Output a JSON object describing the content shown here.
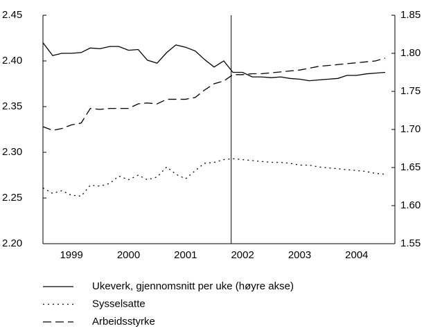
{
  "chart_data": {
    "type": "line",
    "x": [
      1999,
      1999.17,
      1999.33,
      1999.5,
      1999.67,
      1999.83,
      2000,
      2000.17,
      2000.33,
      2000.5,
      2000.67,
      2000.83,
      2001,
      2001.17,
      2001.33,
      2001.5,
      2001.67,
      2001.83,
      2002,
      2002.17,
      2002.33,
      2002.5,
      2002.67,
      2002.83,
      2003,
      2003.17,
      2003.33,
      2003.5,
      2003.67,
      2003.83,
      2004,
      2004.17,
      2004.33,
      2004.5,
      2004.67,
      2004.83,
      2005
    ],
    "xlim": [
      1999,
      2005.17
    ],
    "xticks": [
      {
        "value": 1999.5,
        "label": "1999"
      },
      {
        "value": 2000.5,
        "label": "2000"
      },
      {
        "value": 2001.5,
        "label": "2001"
      },
      {
        "value": 2002.5,
        "label": "2002"
      },
      {
        "value": 2003.5,
        "label": "2003"
      },
      {
        "value": 2004.5,
        "label": "2004"
      }
    ],
    "ylim": [
      2.2,
      2.45
    ],
    "yticks": [
      {
        "value": 2.2,
        "label": "2.20"
      },
      {
        "value": 2.25,
        "label": "2.25"
      },
      {
        "value": 2.3,
        "label": "2.30"
      },
      {
        "value": 2.35,
        "label": "2.35"
      },
      {
        "value": 2.4,
        "label": "2.40"
      },
      {
        "value": 2.45,
        "label": "2.45"
      }
    ],
    "y2lim": [
      1.55,
      1.85
    ],
    "y2ticks": [
      {
        "value": 1.55,
        "label": "1.55"
      },
      {
        "value": 1.6,
        "label": "1.60"
      },
      {
        "value": 1.65,
        "label": "1.65"
      },
      {
        "value": 1.7,
        "label": "1.70"
      },
      {
        "value": 1.75,
        "label": "1.75"
      },
      {
        "value": 1.8,
        "label": "1.80"
      },
      {
        "value": 1.85,
        "label": "1.85"
      }
    ],
    "vline_x": 2002.3,
    "series": [
      {
        "name": "Ukeverk, gjennomsnitt per uke (høyre akse)",
        "color": "#000000",
        "dash": "none",
        "axis": "y2",
        "values": [
          1.814,
          1.797,
          1.8,
          1.8,
          1.801,
          1.807,
          1.806,
          1.809,
          1.809,
          1.804,
          1.805,
          1.791,
          1.787,
          1.801,
          1.811,
          1.808,
          1.803,
          1.792,
          1.782,
          1.79,
          1.775,
          1.775,
          1.769,
          1.769,
          1.768,
          1.769,
          1.767,
          1.766,
          1.764,
          1.765,
          1.766,
          1.767,
          1.771,
          1.771,
          1.773,
          1.774,
          1.775
        ]
      },
      {
        "name": "Sysselsatte",
        "color": "#000000",
        "dash": "2 5",
        "values": [
          2.261,
          2.255,
          2.258,
          2.253,
          2.252,
          2.264,
          2.263,
          2.266,
          2.274,
          2.27,
          2.275,
          2.27,
          2.273,
          2.284,
          2.276,
          2.271,
          2.28,
          2.288,
          2.289,
          2.292,
          2.293,
          2.292,
          2.291,
          2.29,
          2.289,
          2.289,
          2.288,
          2.286,
          2.286,
          2.284,
          2.283,
          2.282,
          2.281,
          2.28,
          2.279,
          2.277,
          2.276
        ]
      },
      {
        "name": "Arbeidsstyrke",
        "color": "#000000",
        "dash": "12 6",
        "values": [
          2.328,
          2.324,
          2.326,
          2.33,
          2.332,
          2.348,
          2.347,
          2.348,
          2.348,
          2.348,
          2.353,
          2.354,
          2.353,
          2.358,
          2.358,
          2.358,
          2.36,
          2.368,
          2.375,
          2.378,
          2.385,
          2.385,
          2.386,
          2.386,
          2.387,
          2.388,
          2.389,
          2.39,
          2.392,
          2.394,
          2.395,
          2.396,
          2.397,
          2.398,
          2.399,
          2.4,
          2.403
        ]
      }
    ]
  }
}
